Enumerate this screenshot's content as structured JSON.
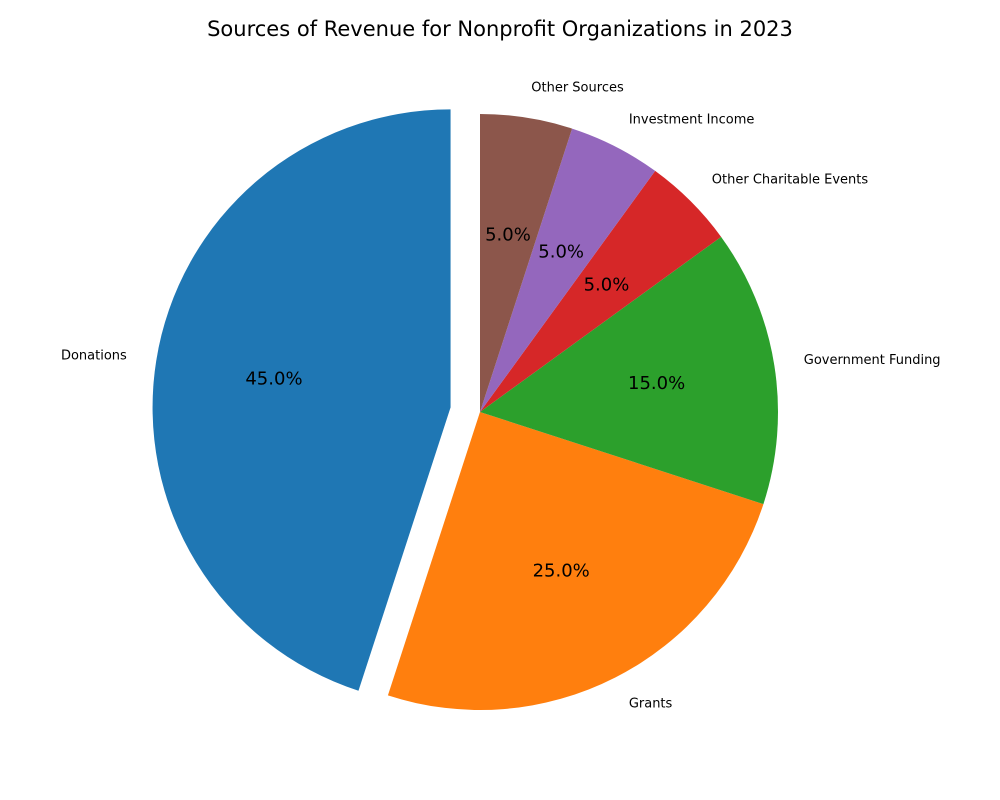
{
  "chart_data": {
    "type": "pie",
    "title": "Sources of Revenue for Nonprofit Organizations in 2023",
    "categories": [
      "Donations",
      "Grants",
      "Government Funding",
      "Other Charitable Events",
      "Investment Income",
      "Other Sources"
    ],
    "values": [
      45,
      25,
      15,
      5,
      5,
      5
    ],
    "percent_labels": [
      "45.0%",
      "25.0%",
      "15.0%",
      "5.0%",
      "5.0%",
      "5.0%"
    ],
    "colors": [
      "#1f77b4",
      "#ff7f0e",
      "#2ca02c",
      "#d62728",
      "#9467bd",
      "#8c564b"
    ],
    "exploded": [
      "Donations"
    ],
    "start_angle_deg": 90,
    "direction": "counterclockwise",
    "legend": "none"
  }
}
